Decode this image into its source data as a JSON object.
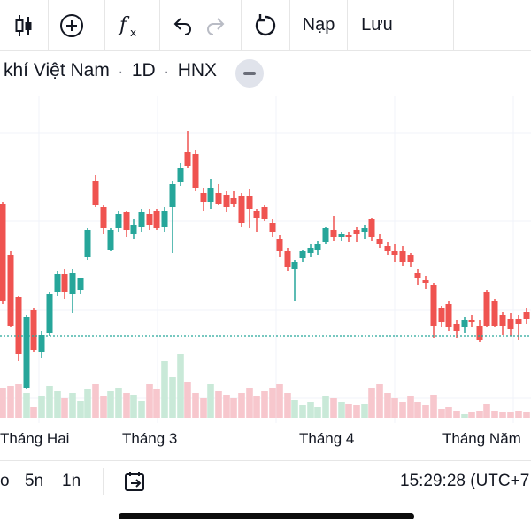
{
  "toolbar": {
    "buttons": [
      {
        "name": "candlestick-chart-type-icon",
        "label": ""
      },
      {
        "name": "add-compare-icon",
        "label": ""
      },
      {
        "name": "indicators-fx-icon",
        "label": ""
      },
      {
        "name": "undo-icon",
        "label": ""
      },
      {
        "name": "redo-icon",
        "label": ""
      },
      {
        "name": "reset-icon",
        "label": ""
      }
    ],
    "load_label": "Nạp",
    "save_label": "Lưu"
  },
  "symbol": {
    "title": "khí Việt Nam",
    "separator1": "·",
    "interval": "1D",
    "separator2": "·",
    "exchange": "HNX"
  },
  "colors": {
    "up": "#26a69a",
    "down": "#ef5350",
    "up_volume": "#c9e9d8",
    "down_volume": "#f7c7cd",
    "price_line": "#26a69a"
  },
  "time_axis": {
    "labels": [
      "Tháng Hai",
      "Tháng 3",
      "Tháng 4",
      "Tháng Năm"
    ]
  },
  "bottom_bar": {
    "ranges": [
      "o",
      "5n",
      "1n"
    ],
    "goto_icon": "goto-date-icon",
    "clock": "15:29:28 (UTC+7"
  }
}
